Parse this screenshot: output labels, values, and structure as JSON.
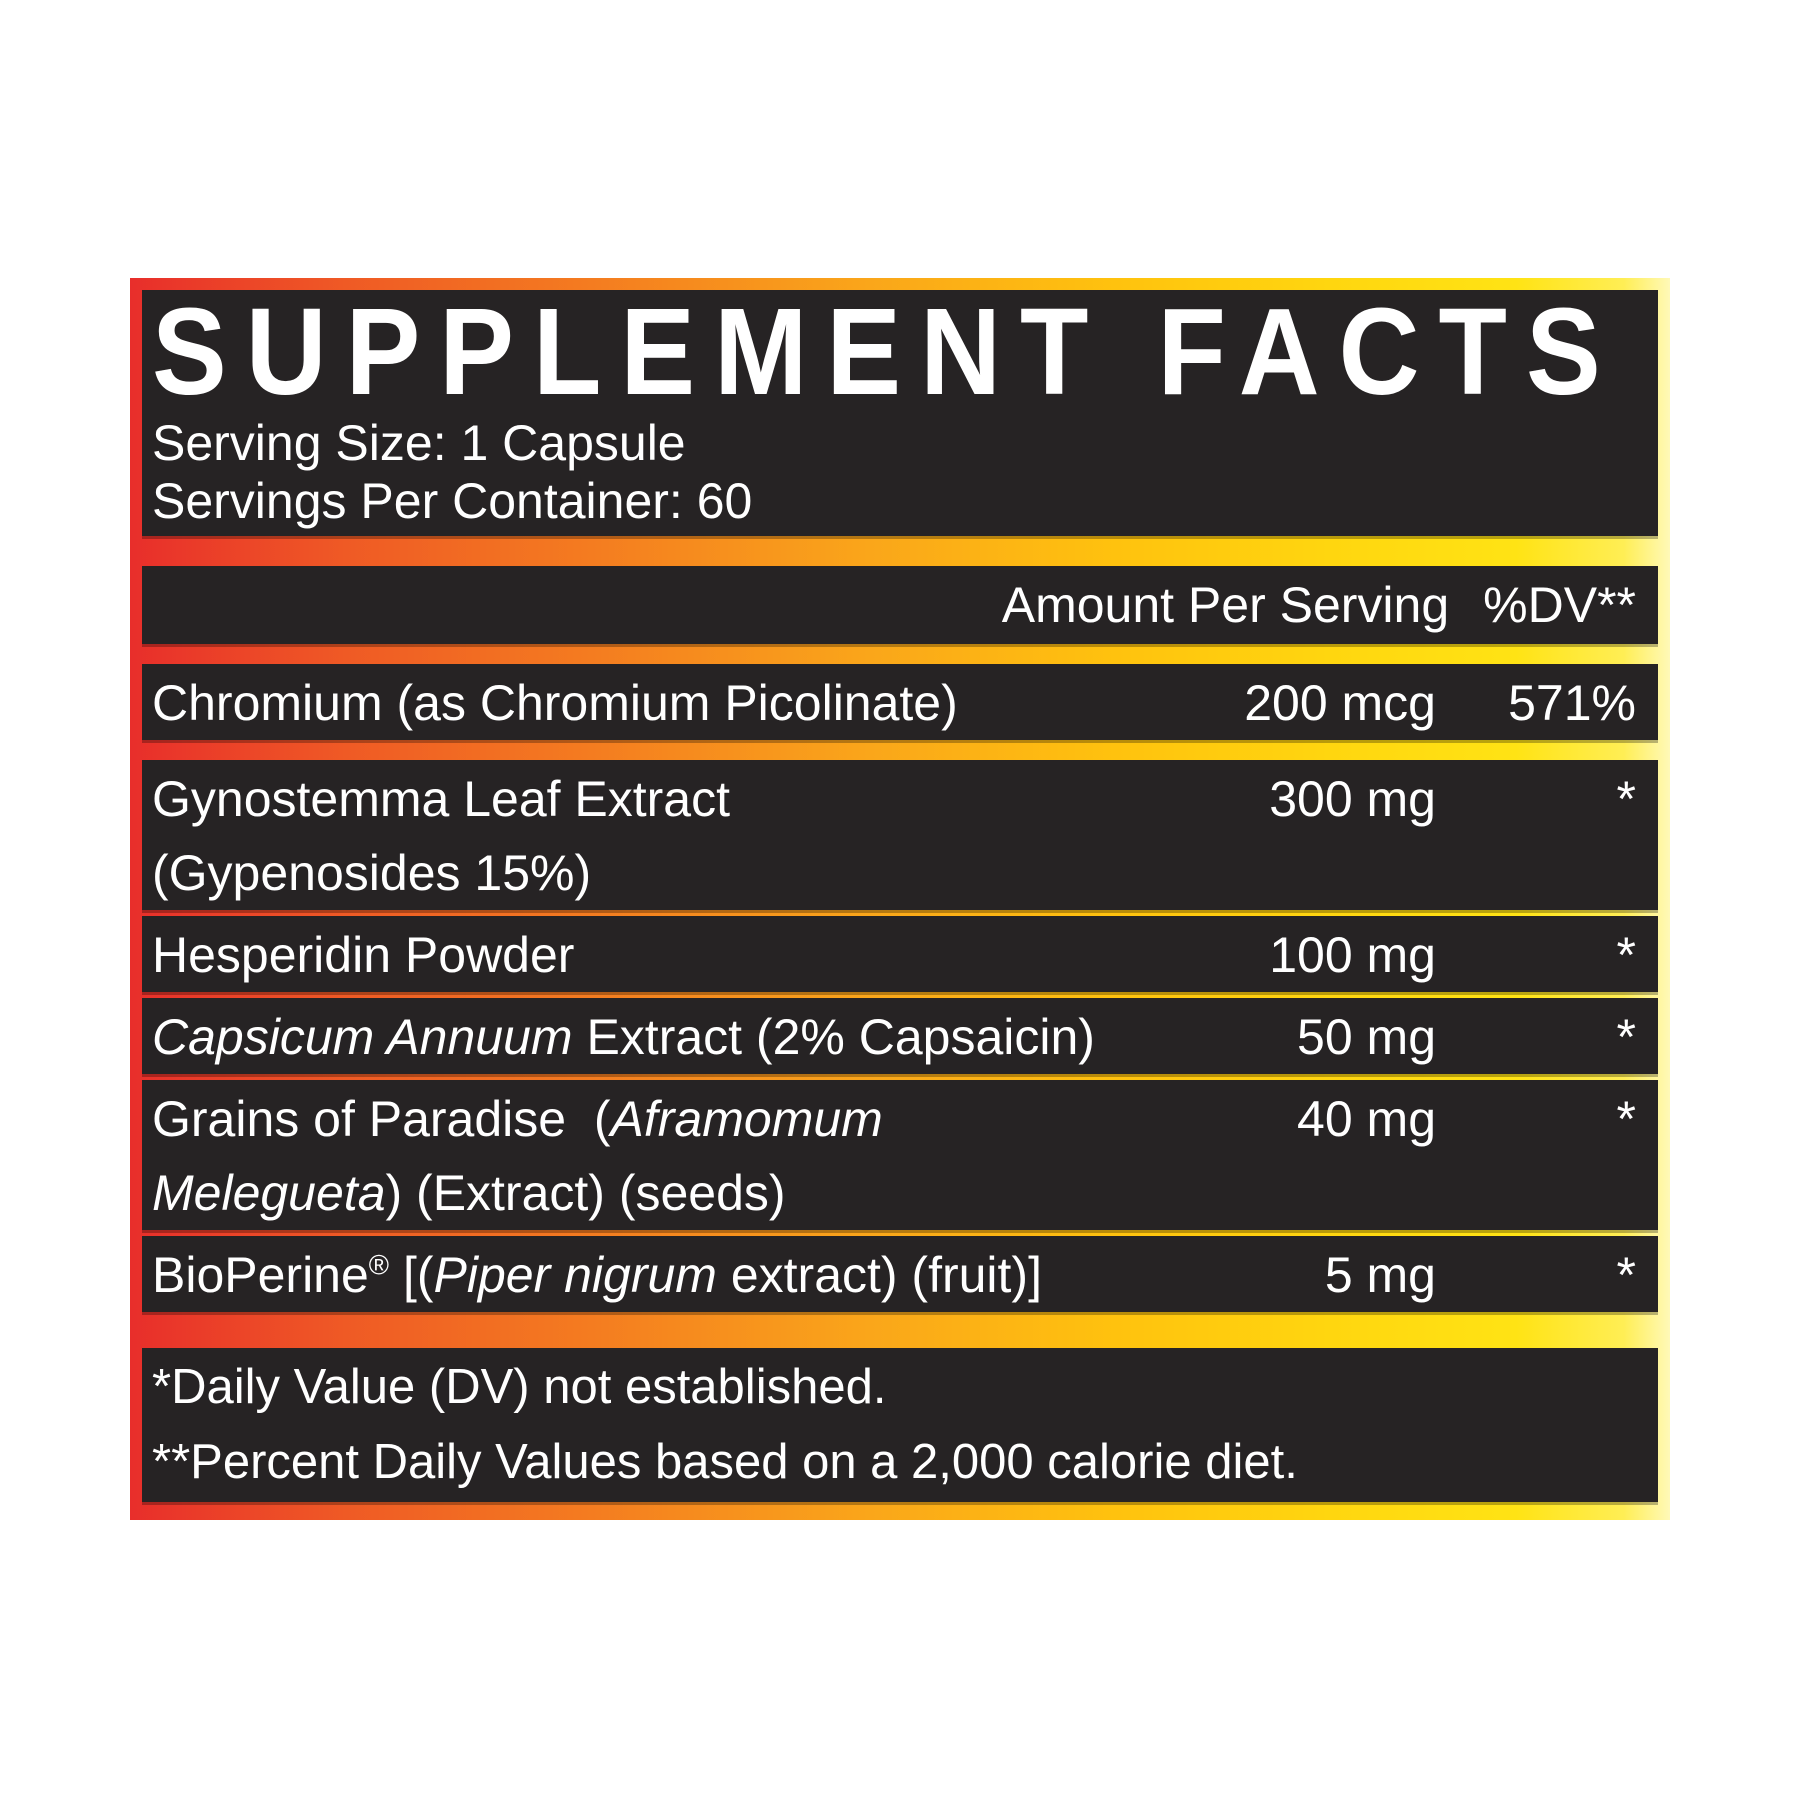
{
  "colors": {
    "grad_left": "#e82e2b",
    "grad_mid": "#f47c20",
    "grad_right": "#ffe314",
    "panel_bg": "#262324",
    "text": "#ffffff"
  },
  "panel": {
    "title": "SUPPLEMENT FACTS",
    "serving_size": "Serving Size: 1 Capsule",
    "servings_per_container": "Servings Per Container: 60",
    "header": {
      "amount_label": "Amount Per Serving",
      "dv_label": "%DV**"
    },
    "rows": [
      {
        "sep": "bar",
        "lines": [
          [
            {
              "t": "Chromium (as Chromium Picolinate)"
            }
          ]
        ],
        "amount": "200 mcg",
        "dv": "571%"
      },
      {
        "sep": "bar",
        "lines": [
          [
            {
              "t": "Gynostemma Leaf Extract"
            }
          ],
          [
            {
              "t": "(Gypenosides 15%)"
            }
          ]
        ],
        "amount": "300 mg",
        "dv": "*"
      },
      {
        "sep": "line",
        "lines": [
          [
            {
              "t": "Hesperidin Powder"
            }
          ]
        ],
        "amount": "100 mg",
        "dv": "*"
      },
      {
        "sep": "line",
        "lines": [
          [
            {
              "t": "Capsicum Annuum",
              "i": true
            },
            {
              "t": " Extract (2% Capsaicin)"
            }
          ]
        ],
        "amount": "50 mg",
        "dv": "*"
      },
      {
        "sep": "line",
        "lines": [
          [
            {
              "t": "Grains of Paradise  ("
            },
            {
              "t": "Aframomum",
              "i": true
            }
          ],
          [
            {
              "t": "Melegueta",
              "i": true
            },
            {
              "t": ") (Extract) (seeds)"
            }
          ]
        ],
        "amount": "40 mg",
        "dv": "*"
      },
      {
        "sep": "line",
        "lines": [
          [
            {
              "t": "BioPerine"
            },
            {
              "t": "®",
              "sup": true
            },
            {
              "t": " [("
            },
            {
              "t": "Piper nigrum",
              "i": true
            },
            {
              "t": " extract) (fruit)]"
            }
          ]
        ],
        "amount": "5 mg",
        "dv": "*"
      }
    ],
    "footnotes": [
      "*Daily Value (DV) not established.",
      "**Percent Daily Values based on a 2,000 calorie diet."
    ]
  }
}
